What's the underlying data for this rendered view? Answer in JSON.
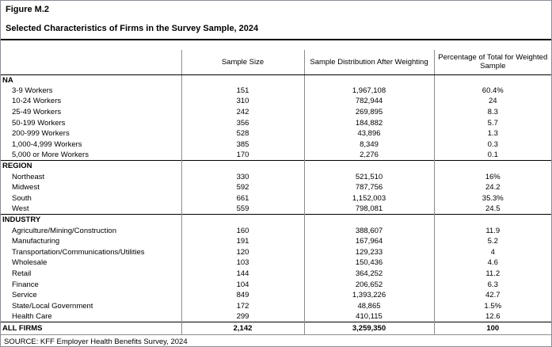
{
  "figure": {
    "number": "Figure M.2",
    "title": "Selected Characteristics of Firms in the Survey Sample, 2024"
  },
  "table": {
    "columns": [
      "",
      "Sample Size",
      "Sample Distribution After Weighting",
      "Percentage of Total for Weighted Sample"
    ],
    "sections": [
      {
        "header": "NA",
        "rows": [
          [
            "3-9 Workers",
            "151",
            "1,967,108",
            "60.4%"
          ],
          [
            "10-24 Workers",
            "310",
            "782,944",
            "24"
          ],
          [
            "25-49 Workers",
            "242",
            "269,895",
            "8.3"
          ],
          [
            "50-199 Workers",
            "356",
            "184,882",
            "5.7"
          ],
          [
            "200-999 Workers",
            "528",
            "43,896",
            "1.3"
          ],
          [
            "1,000-4,999 Workers",
            "385",
            "8,349",
            "0.3"
          ],
          [
            "5,000 or More Workers",
            "170",
            "2,276",
            "0.1"
          ]
        ]
      },
      {
        "header": "REGION",
        "rows": [
          [
            "Northeast",
            "330",
            "521,510",
            "16%"
          ],
          [
            "Midwest",
            "592",
            "787,756",
            "24.2"
          ],
          [
            "South",
            "661",
            "1,152,003",
            "35.3%"
          ],
          [
            "West",
            "559",
            "798,081",
            "24.5"
          ]
        ]
      },
      {
        "header": "INDUSTRY",
        "rows": [
          [
            "Agriculture/Mining/Construction",
            "160",
            "388,607",
            "11.9"
          ],
          [
            "Manufacturing",
            "191",
            "167,964",
            "5.2"
          ],
          [
            "Transportation/Communications/Utilities",
            "120",
            "129,233",
            "4"
          ],
          [
            "Wholesale",
            "103",
            "150,436",
            "4.6"
          ],
          [
            "Retail",
            "144",
            "364,252",
            "11.2"
          ],
          [
            "Finance",
            "104",
            "206,652",
            "6.3"
          ],
          [
            "Service",
            "849",
            "1,393,226",
            "42.7"
          ],
          [
            "State/Local Government",
            "172",
            "48,865",
            "1.5%"
          ],
          [
            "Health Care",
            "299",
            "410,115",
            "12.6"
          ]
        ]
      }
    ],
    "total": {
      "label": "ALL FIRMS",
      "sample_size": "2,142",
      "distribution": "3,259,350",
      "percentage": "100"
    }
  },
  "source": "SOURCE: KFF Employer Health Benefits Survey, 2024"
}
